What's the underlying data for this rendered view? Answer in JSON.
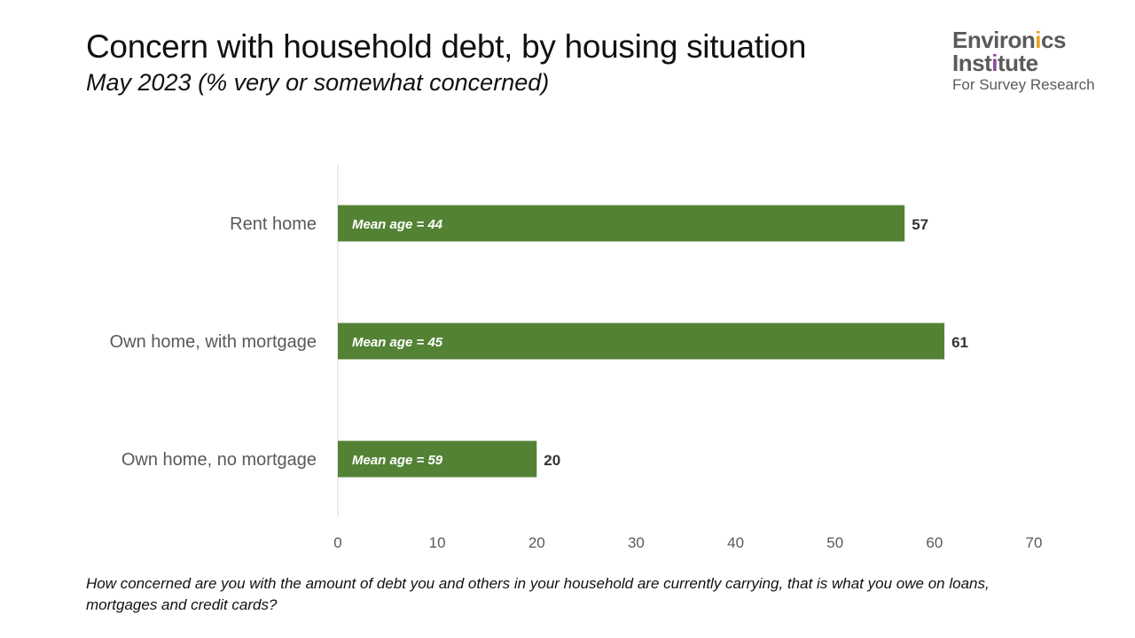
{
  "header": {
    "title": "Concern with household debt, by housing situation",
    "subtitle": "May 2023 (% very or somewhat concerned)"
  },
  "logo": {
    "line1": "Environics",
    "line2": "Institute",
    "line3": "For Survey Research",
    "colors": {
      "text": "#5a5a5a",
      "accent_1": "#e8a21c",
      "accent_2": "#8b4a9c"
    }
  },
  "chart_data": {
    "type": "bar",
    "orientation": "horizontal",
    "categories": [
      "Rent home",
      "Own home, with mortgage",
      "Own home, no mortgage"
    ],
    "values": [
      57,
      61,
      20
    ],
    "bar_labels": [
      "Mean age = 44",
      "Mean age = 45",
      "Mean age = 59"
    ],
    "xlim": [
      0,
      70
    ],
    "xticks": [
      0,
      10,
      20,
      30,
      40,
      50,
      60,
      70
    ],
    "grid": false,
    "bar_color": "#548235"
  },
  "footnote": "How concerned are you with the amount of debt you and others in your household are currently carrying, that is what you owe on loans, mortgages and credit cards?"
}
